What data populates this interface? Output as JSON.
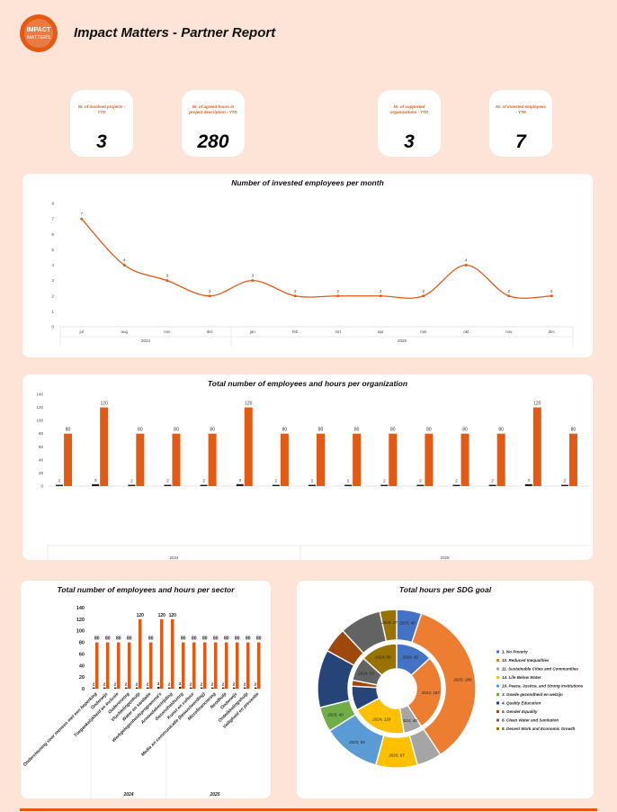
{
  "header": {
    "logo_text_line1": "IMPACT",
    "logo_text_line2": "MATTERS",
    "title": "Impact Matters - Partner Report"
  },
  "kpis": [
    {
      "label": "Nr. of involved projects - YTD",
      "value": "3"
    },
    {
      "label": "Nr. of agreed hours in project description - YTD",
      "value": "280"
    },
    {
      "label": "Nr. of supported organizations - YTD",
      "value": "3"
    },
    {
      "label": "Nr. of invested employees - YTD",
      "value": "7"
    }
  ],
  "colors": {
    "accent": "#e35a14",
    "background": "#fde4d7"
  },
  "chart_data": [
    {
      "type": "line",
      "title": "Number of invested employees per month",
      "categories": [
        "jul",
        "aug",
        "nov",
        "dec",
        "jan",
        "feb",
        "mrt",
        "apr",
        "mei",
        "okt",
        "nov",
        "dec"
      ],
      "values": [
        7,
        4,
        3,
        2,
        3,
        2,
        2,
        2,
        2,
        4,
        2,
        2
      ],
      "ylim": [
        0,
        8
      ],
      "yticks": [
        0,
        1,
        2,
        3,
        4,
        5,
        6,
        7,
        8
      ],
      "groups": [
        {
          "label": "2024",
          "count": 4
        },
        {
          "label": "2025",
          "count": 8
        }
      ],
      "color": "#e35a14"
    },
    {
      "type": "bar",
      "title": "Total number of employees and hours per organization",
      "series": [
        {
          "name": "Employees",
          "values": [
            2,
            3,
            2,
            2,
            2,
            3,
            2,
            2,
            2,
            2,
            2,
            2,
            2,
            3,
            2
          ],
          "color": "#1f1f1f"
        },
        {
          "name": "Hours",
          "values": [
            80,
            120,
            80,
            80,
            80,
            120,
            80,
            80,
            80,
            80,
            80,
            80,
            80,
            120,
            80
          ],
          "color": "#e35a14"
        }
      ],
      "ylim": [
        0,
        140
      ],
      "yticks": [
        0,
        20,
        40,
        60,
        80,
        100,
        120,
        140
      ],
      "groups": [
        {
          "label": "2024",
          "count": 7
        },
        {
          "label": "2025",
          "count": 8
        }
      ]
    },
    {
      "type": "bar",
      "title": "Total number of employees and hours per sector",
      "categories": [
        "Ondersteuning voor mensen met een beperking",
        "Onderwijs",
        "Toegankelijkheid en inclusie",
        "Ouderenzorg",
        "Vluchtelingenhulp",
        "Water en sanitatie",
        "Werkgelegenheidsprogramma's",
        "Armoedebestrijding",
        "Gezondheidszorg",
        "Kunst en cultuur",
        "Media en communicatie (bewustwording)",
        "Microfinanciering",
        "Noodhulp",
        "Onderwijs",
        "Ontwikkelingshulp",
        "Veiligheid en preventie"
      ],
      "series": [
        {
          "name": "Employees",
          "values": [
            2,
            2,
            2,
            2,
            2,
            2,
            3,
            2,
            3,
            2,
            2,
            2,
            2,
            2,
            2,
            2
          ],
          "color": "#1f1f1f"
        },
        {
          "name": "Hours",
          "values": [
            80,
            80,
            80,
            80,
            120,
            80,
            120,
            120,
            80,
            80,
            80,
            80,
            80,
            80,
            80,
            80
          ],
          "color": "#e35a14"
        }
      ],
      "ylim": [
        0,
        140
      ],
      "yticks": [
        0,
        20,
        40,
        60,
        80,
        100,
        120,
        140
      ],
      "groups": [
        {
          "label": "2024",
          "count": 7
        },
        {
          "label": "2025",
          "count": 9
        }
      ]
    },
    {
      "type": "pie",
      "title": "Total hours per SDG goal",
      "legend": [
        {
          "label": "1. No Poverty",
          "color": "#4472c4"
        },
        {
          "label": "10. Reduced Inequalities",
          "color": "#ed7d31"
        },
        {
          "label": "11. Sustainable Cities and Communities",
          "color": "#a5a5a5"
        },
        {
          "label": "14. Life Below Water",
          "color": "#ffc000"
        },
        {
          "label": "16. Peace, Justice, and Strong Institutions",
          "color": "#5b9bd5"
        },
        {
          "label": "3. Goede gezondheid en welzijn",
          "color": "#70ad47"
        },
        {
          "label": "4. Quality Education",
          "color": "#264478"
        },
        {
          "label": "5. Gender Equality",
          "color": "#9e480e"
        },
        {
          "label": "6. Clean Water and Sanitation",
          "color": "#636363"
        },
        {
          "label": "8. Decent Work and Economic Growth",
          "color": "#997300"
        }
      ],
      "outer_ring": [
        {
          "label": "2025; 40",
          "value": 40,
          "color": "#4472c4"
        },
        {
          "label": "2025; 280",
          "value": 280,
          "color": "#ed7d31"
        },
        {
          "label": "",
          "value": 40,
          "color": "#a5a5a5"
        },
        {
          "label": "2025; 67",
          "value": 67,
          "color": "#ffc000"
        },
        {
          "label": "2025; 93",
          "value": 93,
          "color": "#5b9bd5"
        },
        {
          "label": "2025; 40",
          "value": 40,
          "color": "#70ad47"
        },
        {
          "label": "",
          "value": 93,
          "color": "#264478"
        },
        {
          "label": "",
          "value": 40,
          "color": "#9e480e"
        },
        {
          "label": "",
          "value": 67,
          "color": "#636363"
        },
        {
          "label": "2025; 27",
          "value": 27,
          "color": "#997300"
        }
      ],
      "inner_ring": [
        {
          "label": "2024; 80",
          "value": 80,
          "color": "#4472c4"
        },
        {
          "label": "2024; 167",
          "value": 167,
          "color": "#ed7d31"
        },
        {
          "label": "2024; 40",
          "value": 40,
          "color": "#a5a5a5"
        },
        {
          "label": "2024; 120",
          "value": 120,
          "color": "#ffc000"
        },
        {
          "label": "",
          "value": 0,
          "color": "#5b9bd5"
        },
        {
          "label": "",
          "value": 0,
          "color": "#70ad47"
        },
        {
          "label": "",
          "value": 53,
          "color": "#264478"
        },
        {
          "label": "",
          "value": 13,
          "color": "#9e480e"
        },
        {
          "label": "2024; 53",
          "value": 53,
          "color": "#636363"
        },
        {
          "label": "2024; 80",
          "value": 80,
          "color": "#997300"
        }
      ]
    }
  ]
}
